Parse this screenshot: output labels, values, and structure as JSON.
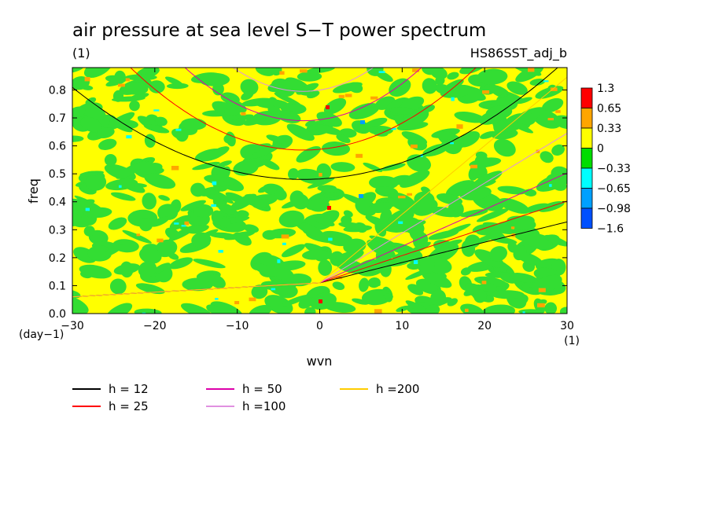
{
  "chart_data": {
    "type": "heatmap",
    "title": "air pressure at sea level S−T power spectrum",
    "units": "(1)",
    "dataset": "HS86SST_adj_b",
    "xlabel": "wvn",
    "ylabel": "freq",
    "x_units": "(1)",
    "y_units": "(day−1)",
    "xlim": [
      -30,
      30
    ],
    "ylim": [
      0,
      0.88
    ],
    "x_ticks": [
      {
        "v": -30,
        "label": "−30"
      },
      {
        "v": -20,
        "label": "−20"
      },
      {
        "v": -10,
        "label": "−10"
      },
      {
        "v": 0,
        "label": "0"
      },
      {
        "v": 10,
        "label": "10"
      },
      {
        "v": 20,
        "label": "20"
      },
      {
        "v": 30,
        "label": "30"
      }
    ],
    "y_ticks": [
      {
        "v": 0.0,
        "label": "0.0"
      },
      {
        "v": 0.1,
        "label": "0.1"
      },
      {
        "v": 0.2,
        "label": "0.2"
      },
      {
        "v": 0.3,
        "label": "0.3"
      },
      {
        "v": 0.4,
        "label": "0.4"
      },
      {
        "v": 0.5,
        "label": "0.5"
      },
      {
        "v": 0.6,
        "label": "0.6"
      },
      {
        "v": 0.7,
        "label": "0.7"
      },
      {
        "v": 0.8,
        "label": "0.8"
      }
    ],
    "colorbar": {
      "labels": [
        "1.3",
        "0.65",
        "0.33",
        "0",
        "−0.33",
        "−0.65",
        "−0.98",
        "−1.6"
      ],
      "colors": [
        "#ff0000",
        "#ffa500",
        "#ffff00",
        "#00dd00",
        "#00ffff",
        "#00a0ff",
        "#0050ff"
      ]
    },
    "field_colors": {
      "positive": "#ffff00",
      "near_zero": "#33dd33",
      "orange": "#ffa500",
      "red": "#ff0000",
      "cyan": "#00ffff",
      "blue": "#00a0ff"
    },
    "dispersion_legend": [
      {
        "label": "h = 12",
        "color": "#000000"
      },
      {
        "label": "h = 25",
        "color": "#ff0000"
      },
      {
        "label": "h = 50",
        "color": "#dd00aa"
      },
      {
        "label": "h =100",
        "color": "#e090e0"
      },
      {
        "label": "h =200",
        "color": "#ffcc00"
      }
    ],
    "grid": false,
    "legend_position": "bottom-left"
  }
}
